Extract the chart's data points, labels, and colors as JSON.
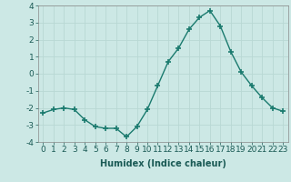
{
  "x": [
    0,
    1,
    2,
    3,
    4,
    5,
    6,
    7,
    8,
    9,
    10,
    11,
    12,
    13,
    14,
    15,
    16,
    17,
    18,
    19,
    20,
    21,
    22,
    23
  ],
  "y": [
    -2.3,
    -2.1,
    -2.0,
    -2.1,
    -2.7,
    -3.1,
    -3.2,
    -3.2,
    -3.7,
    -3.1,
    -2.1,
    -0.7,
    0.7,
    1.5,
    2.6,
    3.3,
    3.7,
    2.8,
    1.3,
    0.1,
    -0.7,
    -1.4,
    -2.0,
    -2.2
  ],
  "line_color": "#1a7a6e",
  "marker": "+",
  "marker_size": 4,
  "marker_lw": 1.2,
  "bg_color": "#cce8e5",
  "grid_color": "#b8d8d4",
  "xlabel": "Humidex (Indice chaleur)",
  "ylim": [
    -4,
    4
  ],
  "xlim": [
    -0.5,
    23.5
  ],
  "yticks": [
    -4,
    -3,
    -2,
    -1,
    0,
    1,
    2,
    3,
    4
  ],
  "xtick_labels": [
    "0",
    "1",
    "2",
    "3",
    "4",
    "5",
    "6",
    "7",
    "8",
    "9",
    "10",
    "11",
    "12",
    "13",
    "14",
    "15",
    "16",
    "17",
    "18",
    "19",
    "20",
    "21",
    "22",
    "23"
  ],
  "label_fontsize": 7,
  "tick_fontsize": 6.5
}
